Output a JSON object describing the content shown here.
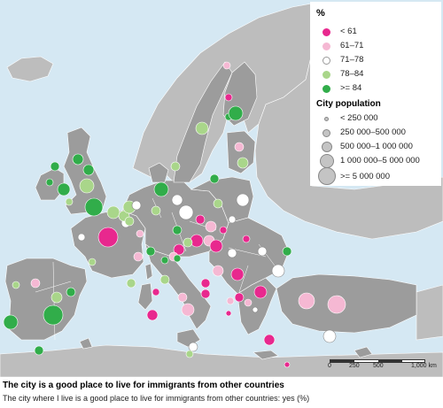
{
  "legend": {
    "title": "%",
    "classes": [
      {
        "label": "< 61",
        "color": "#e8288e"
      },
      {
        "label": "61–71",
        "color": "#f5b8d3"
      },
      {
        "label": "71–78",
        "color": "#ffffff"
      },
      {
        "label": "78–84",
        "color": "#a9d68a"
      },
      {
        "label": ">= 84",
        "color": "#31ad4a"
      }
    ],
    "size_title": "City population",
    "sizes": [
      {
        "label": "< 250 000"
      },
      {
        "label": "250 000–500 000"
      },
      {
        "label": "500 000–1 000 000"
      },
      {
        "label": "1 000 000–5 000 000"
      },
      {
        "label": ">= 5 000 000"
      }
    ]
  },
  "scale": {
    "labels": [
      "0",
      "250",
      "500",
      "1,000 km"
    ]
  },
  "caption": {
    "title": "The city is a good place to live for immigrants from other countries",
    "subtitle": "The city where I live is a good place to live for immigrants from other countries: yes (%)"
  },
  "colors": {
    "sea": "#d5e8f3",
    "land_included": "#9c9c9c",
    "land_other": "#bdbdbd",
    "border": "#ffffff"
  }
}
